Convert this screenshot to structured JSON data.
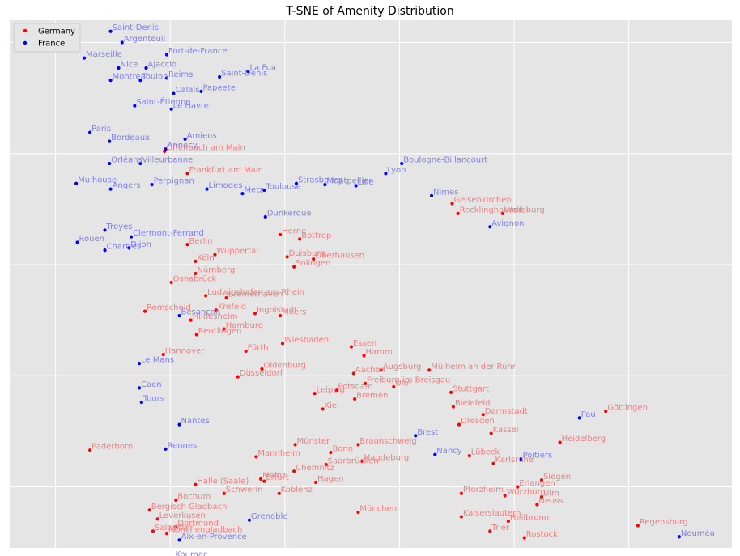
{
  "chart_data": {
    "type": "scatter",
    "title": "T-SNE of Amenity Distribution",
    "xlabel": "",
    "ylabel": "",
    "xlim": [
      -6,
      57
    ],
    "ylim": [
      -10.5,
      37
    ],
    "grid": true,
    "legend_position": "top-left",
    "series": [
      {
        "name": "Germany",
        "color": "#ff0000",
        "label_color": "#f08080",
        "points": [
          {
            "label": "Offenbach am Main",
            "x": 7.5,
            "y": 25.2
          },
          {
            "label": "Frankfurt am Main",
            "x": 9.5,
            "y": 23.2
          },
          {
            "label": "Gelsenkirchen",
            "x": 32.6,
            "y": 20.5
          },
          {
            "label": "Recklinghausen",
            "x": 33.1,
            "y": 19.6
          },
          {
            "label": "Wolfsburg",
            "x": 37.0,
            "y": 19.6
          },
          {
            "label": "Herne",
            "x": 17.6,
            "y": 17.7
          },
          {
            "label": "Bottrop",
            "x": 19.3,
            "y": 17.3
          },
          {
            "label": "Berlin",
            "x": 9.5,
            "y": 16.8
          },
          {
            "label": "Wuppertal",
            "x": 11.9,
            "y": 15.9
          },
          {
            "label": "Duisburg",
            "x": 18.2,
            "y": 15.7
          },
          {
            "label": "Oberhausen",
            "x": 20.5,
            "y": 15.5
          },
          {
            "label": "Köln",
            "x": 10.2,
            "y": 15.3
          },
          {
            "label": "Solingen",
            "x": 18.8,
            "y": 14.8
          },
          {
            "label": "Nürnberg",
            "x": 10.2,
            "y": 14.2
          },
          {
            "label": "Osnabrück",
            "x": 8.1,
            "y": 13.4
          },
          {
            "label": "Ludwigshafen am Rhein",
            "x": 11.1,
            "y": 12.2
          },
          {
            "label": "Bremerhaven",
            "x": 12.9,
            "y": 12.0
          },
          {
            "label": "Remscheid",
            "x": 5.8,
            "y": 10.8
          },
          {
            "label": "Krefeld",
            "x": 12.0,
            "y": 10.9
          },
          {
            "label": "Ingolstadt",
            "x": 15.4,
            "y": 10.6
          },
          {
            "label": "Hildesheim",
            "x": 9.8,
            "y": 10.0
          },
          {
            "label": "Moers",
            "x": 17.6,
            "y": 10.4
          },
          {
            "label": "Hamburg",
            "x": 12.7,
            "y": 9.2
          },
          {
            "label": "Reutlingen",
            "x": 10.3,
            "y": 8.7
          },
          {
            "label": "Wiesbaden",
            "x": 17.8,
            "y": 7.9
          },
          {
            "label": "Essen",
            "x": 23.8,
            "y": 7.6
          },
          {
            "label": "Hannover",
            "x": 7.4,
            "y": 6.9
          },
          {
            "label": "Fürth",
            "x": 14.6,
            "y": 7.2
          },
          {
            "label": "Hamm",
            "x": 24.9,
            "y": 6.8
          },
          {
            "label": "Oldenburg",
            "x": 16.0,
            "y": 5.6
          },
          {
            "label": "Mülheim an der Ruhr",
            "x": 30.6,
            "y": 5.5
          },
          {
            "label": "Augsburg",
            "x": 26.4,
            "y": 5.5
          },
          {
            "label": "Aachen",
            "x": 24.0,
            "y": 5.2
          },
          {
            "label": "Düsseldorf",
            "x": 13.9,
            "y": 4.9
          },
          {
            "label": "Freiburg im Breisgau",
            "x": 25.0,
            "y": 4.3
          },
          {
            "label": "Ulm",
            "x": 27.5,
            "y": 4.0
          },
          {
            "label": "Potsdam",
            "x": 22.5,
            "y": 3.7
          },
          {
            "label": "Leipzig",
            "x": 20.6,
            "y": 3.4
          },
          {
            "label": "Stuttgart",
            "x": 32.5,
            "y": 3.5
          },
          {
            "label": "Bremen",
            "x": 24.1,
            "y": 2.9
          },
          {
            "label": "Bielefeld",
            "x": 32.7,
            "y": 2.2
          },
          {
            "label": "Kiel",
            "x": 21.3,
            "y": 2.0
          },
          {
            "label": "Darmstadt",
            "x": 35.3,
            "y": 1.5
          },
          {
            "label": "Göttingen",
            "x": 46.0,
            "y": 1.8
          },
          {
            "label": "Dresden",
            "x": 33.2,
            "y": 0.6
          },
          {
            "label": "Kassel",
            "x": 36.0,
            "y": -0.2
          },
          {
            "label": "Braunschweig",
            "x": 24.4,
            "y": -1.2
          },
          {
            "label": "Heidelberg",
            "x": 42.0,
            "y": -1.0
          },
          {
            "label": "Münster",
            "x": 18.9,
            "y": -1.2
          },
          {
            "label": "Paderborn",
            "x": 1.0,
            "y": -1.7
          },
          {
            "label": "Bonn",
            "x": 22.0,
            "y": -1.9
          },
          {
            "label": "Mannheim",
            "x": 15.5,
            "y": -2.3
          },
          {
            "label": "Magdeburg",
            "x": 24.7,
            "y": -2.7
          },
          {
            "label": "Lübeck",
            "x": 34.1,
            "y": -2.2
          },
          {
            "label": "Saarbrücken",
            "x": 21.6,
            "y": -3.0
          },
          {
            "label": "Karlsruhe",
            "x": 36.2,
            "y": -2.9
          },
          {
            "label": "Chemnitz",
            "x": 18.8,
            "y": -3.6
          },
          {
            "label": "Mainz",
            "x": 15.9,
            "y": -4.3
          },
          {
            "label": "Erfurt",
            "x": 16.2,
            "y": -4.5
          },
          {
            "label": "Hagen",
            "x": 20.7,
            "y": -4.6
          },
          {
            "label": "Siegen",
            "x": 40.4,
            "y": -4.4
          },
          {
            "label": "Halle (Saale)",
            "x": 10.2,
            "y": -4.8
          },
          {
            "label": "Erlangen",
            "x": 38.3,
            "y": -5.0
          },
          {
            "label": "Schwerin",
            "x": 12.7,
            "y": -5.6
          },
          {
            "label": "Koblenz",
            "x": 17.5,
            "y": -5.6
          },
          {
            "label": "Pforzheim",
            "x": 33.4,
            "y": -5.6
          },
          {
            "label": "Würzburg",
            "x": 37.2,
            "y": -5.8
          },
          {
            "label": "Ulm",
            "x": 40.4,
            "y": -5.9
          },
          {
            "label": "Bochum",
            "x": 8.5,
            "y": -6.2
          },
          {
            "label": "Neuss",
            "x": 40.0,
            "y": -6.6
          },
          {
            "label": "Bergisch Gladbach",
            "x": 6.2,
            "y": -7.1
          },
          {
            "label": "München",
            "x": 24.4,
            "y": -7.3
          },
          {
            "label": "Kaiserslautern",
            "x": 33.4,
            "y": -7.7
          },
          {
            "label": "Leverkusen",
            "x": 6.9,
            "y": -7.9
          },
          {
            "label": "Heilbronn",
            "x": 37.5,
            "y": -8.1
          },
          {
            "label": "Dortmund",
            "x": 8.5,
            "y": -8.6
          },
          {
            "label": "Regensburg",
            "x": 48.8,
            "y": -8.5
          },
          {
            "label": "Salzgitter",
            "x": 6.5,
            "y": -9.0
          },
          {
            "label": "Mönchengladbach",
            "x": 7.7,
            "y": -9.2
          },
          {
            "label": "Trier",
            "x": 35.9,
            "y": -9.0
          },
          {
            "label": "Rostock",
            "x": 38.9,
            "y": -9.6
          }
        ]
      },
      {
        "name": "France",
        "color": "#0000ff",
        "label_color": "#8080ee",
        "points": [
          {
            "label": "Saint-Denis",
            "x": 2.8,
            "y": 36.0
          },
          {
            "label": "Argenteuil",
            "x": 3.8,
            "y": 35.0
          },
          {
            "label": "Marseille",
            "x": 0.5,
            "y": 33.6
          },
          {
            "label": "Fort-de-France",
            "x": 7.7,
            "y": 33.9
          },
          {
            "label": "Nice",
            "x": 3.5,
            "y": 32.7
          },
          {
            "label": "Ajaccio",
            "x": 5.9,
            "y": 32.7
          },
          {
            "label": "La Foa",
            "x": 14.8,
            "y": 32.4
          },
          {
            "label": "Saint-Denis",
            "x": 12.3,
            "y": 31.9
          },
          {
            "label": "Montreal",
            "x": 2.8,
            "y": 31.6
          },
          {
            "label": "Toulon",
            "x": 5.4,
            "y": 31.6
          },
          {
            "label": "Reims",
            "x": 7.7,
            "y": 31.8
          },
          {
            "label": "Calais",
            "x": 8.3,
            "y": 30.4
          },
          {
            "label": "Papeete",
            "x": 10.7,
            "y": 30.6
          },
          {
            "label": "Saint-Étienne",
            "x": 4.9,
            "y": 29.3
          },
          {
            "label": "Le Havre",
            "x": 8.1,
            "y": 29.0
          },
          {
            "label": "Paris",
            "x": 1.0,
            "y": 26.9
          },
          {
            "label": "Bordeaux",
            "x": 2.7,
            "y": 26.1
          },
          {
            "label": "Amiens",
            "x": 9.3,
            "y": 26.3
          },
          {
            "label": "Annecy",
            "x": 7.6,
            "y": 25.4
          },
          {
            "label": "Boulogne-Billancourt",
            "x": 28.2,
            "y": 24.1
          },
          {
            "label": "Orléans",
            "x": 2.7,
            "y": 24.1
          },
          {
            "label": "Villeurbanne",
            "x": 5.4,
            "y": 24.1
          },
          {
            "label": "Lyon",
            "x": 26.8,
            "y": 23.2
          },
          {
            "label": "Strasbourg",
            "x": 19.0,
            "y": 22.3
          },
          {
            "label": "Montpellier",
            "x": 21.5,
            "y": 22.2
          },
          {
            "label": "Lille",
            "x": 24.2,
            "y": 22.1
          },
          {
            "label": "Mulhouse",
            "x": -0.2,
            "y": 22.3
          },
          {
            "label": "Perpignan",
            "x": 6.4,
            "y": 22.2
          },
          {
            "label": "Angers",
            "x": 2.8,
            "y": 21.8
          },
          {
            "label": "Limoges",
            "x": 11.2,
            "y": 21.8
          },
          {
            "label": "Metz",
            "x": 14.3,
            "y": 21.4
          },
          {
            "label": "Toulouse",
            "x": 16.2,
            "y": 21.7
          },
          {
            "label": "Nîmes",
            "x": 30.8,
            "y": 21.2
          },
          {
            "label": "Dunkerque",
            "x": 16.3,
            "y": 19.3
          },
          {
            "label": "Avignon",
            "x": 35.9,
            "y": 18.4
          },
          {
            "label": "Troyes",
            "x": 2.3,
            "y": 18.1
          },
          {
            "label": "Clermont-Ferrand",
            "x": 4.6,
            "y": 17.5
          },
          {
            "label": "Rouen",
            "x": -0.1,
            "y": 17.0
          },
          {
            "label": "Dijon",
            "x": 4.4,
            "y": 16.5
          },
          {
            "label": "Chartres",
            "x": 2.3,
            "y": 16.3
          },
          {
            "label": "Besançon",
            "x": 8.8,
            "y": 10.4
          },
          {
            "label": "Le Mans",
            "x": 5.3,
            "y": 6.1
          },
          {
            "label": "Caen",
            "x": 5.3,
            "y": 3.9
          },
          {
            "label": "Tours",
            "x": 5.5,
            "y": 2.6
          },
          {
            "label": "Pau",
            "x": 43.7,
            "y": 1.2
          },
          {
            "label": "Nantes",
            "x": 8.8,
            "y": 0.6
          },
          {
            "label": "Brest",
            "x": 29.4,
            "y": -0.4
          },
          {
            "label": "Rennes",
            "x": 7.6,
            "y": -1.6
          },
          {
            "label": "Nancy",
            "x": 31.1,
            "y": -2.1
          },
          {
            "label": "Poitiers",
            "x": 38.6,
            "y": -2.5
          },
          {
            "label": "Grenoble",
            "x": 14.9,
            "y": -8.0
          },
          {
            "label": "Aix-en-Provence",
            "x": 8.8,
            "y": -9.8
          },
          {
            "label": "Nouméa",
            "x": 52.4,
            "y": -9.5
          },
          {
            "label": "Koumac",
            "x": 8.3,
            "y": -11.4
          }
        ]
      }
    ]
  }
}
